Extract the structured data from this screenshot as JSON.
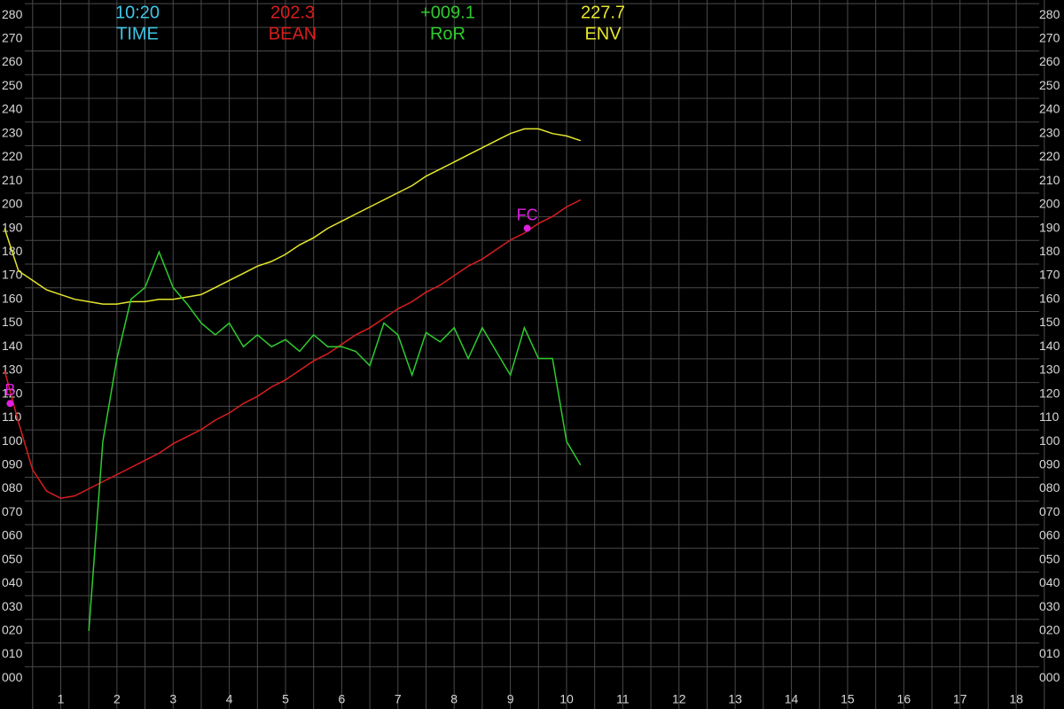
{
  "chart_data": {
    "type": "line",
    "readouts": [
      {
        "value": "10:20",
        "label": "TIME",
        "color": "#3fc6e6"
      },
      {
        "value": "202.3",
        "label": "BEAN",
        "color": "#d81e1e"
      },
      {
        "value": "+009.1",
        "label": "RoR",
        "color": "#2ecc2e"
      },
      {
        "value": "227.7",
        "label": "ENV",
        "color": "#e6e62e"
      }
    ],
    "x": [
      0,
      0.25,
      0.5,
      0.75,
      1,
      1.25,
      1.5,
      1.75,
      2,
      2.25,
      2.5,
      2.75,
      3,
      3.25,
      3.5,
      3.75,
      4,
      4.25,
      4.5,
      4.75,
      5,
      5.25,
      5.5,
      5.75,
      6,
      6.25,
      6.5,
      6.75,
      7,
      7.25,
      7.5,
      7.75,
      8,
      8.25,
      8.5,
      8.75,
      9,
      9.25,
      9.5,
      9.75,
      10,
      10.25
    ],
    "series": [
      {
        "name": "ENV",
        "color": "#e6e62e",
        "values": [
          190,
          172,
          168,
          164,
          162,
          160,
          159,
          158,
          158,
          159,
          159,
          160,
          160,
          161,
          162,
          165,
          168,
          171,
          174,
          176,
          179,
          183,
          186,
          190,
          193,
          196,
          199,
          202,
          205,
          208,
          212,
          215,
          218,
          221,
          224,
          227,
          230,
          232,
          232,
          230,
          229,
          227
        ]
      },
      {
        "name": "BEAN",
        "color": "#d81e1e",
        "values": [
          130,
          108,
          88,
          79,
          76,
          77,
          80,
          83,
          86,
          89,
          92,
          95,
          99,
          102,
          105,
          109,
          112,
          116,
          119,
          123,
          126,
          130,
          134,
          137,
          141,
          145,
          148,
          152,
          156,
          159,
          163,
          166,
          170,
          174,
          177,
          181,
          185,
          188,
          192,
          195,
          199,
          202
        ]
      },
      {
        "name": "RoR",
        "color": "#2ecc2e",
        "values": [
          null,
          null,
          null,
          null,
          null,
          null,
          20,
          100,
          135,
          160,
          165,
          180,
          165,
          158,
          150,
          145,
          150,
          140,
          145,
          140,
          143,
          138,
          145,
          140,
          140,
          138,
          132,
          150,
          145,
          128,
          146,
          142,
          148,
          135,
          148,
          138,
          128,
          148,
          135,
          135,
          100,
          90
        ]
      }
    ],
    "annotations": [
      {
        "text": "B",
        "x": 0.1,
        "y": 116,
        "color": "#e020e0"
      },
      {
        "text": "FC",
        "x": 9.3,
        "y": 190,
        "color": "#e020e0"
      }
    ],
    "xlim": [
      -0.08,
      18.85
    ],
    "ylim": [
      -13,
      286.4
    ],
    "xticks": [
      1,
      2,
      3,
      4,
      5,
      6,
      7,
      8,
      9,
      10,
      11,
      12,
      13,
      14,
      15,
      16,
      17,
      18
    ],
    "xminorticks": [
      0.5,
      1.5,
      2.5,
      3.5,
      4.5,
      5.5,
      6.5,
      7.5,
      8.5,
      9.5,
      10.5,
      11.5,
      12.5,
      13.5,
      14.5,
      15.5,
      16.5,
      17.5,
      18.5
    ],
    "yticks": [
      {
        "value": 0,
        "label": "000"
      },
      {
        "value": 10,
        "label": "010"
      },
      {
        "value": 20,
        "label": "020"
      },
      {
        "value": 30,
        "label": "030"
      },
      {
        "value": 40,
        "label": "040"
      },
      {
        "value": 50,
        "label": "050"
      },
      {
        "value": 60,
        "label": "060"
      },
      {
        "value": 70,
        "label": "070"
      },
      {
        "value": 80,
        "label": "080"
      },
      {
        "value": 90,
        "label": "090"
      },
      100,
      110,
      120,
      130,
      140,
      150,
      160,
      170,
      180,
      190,
      200,
      210,
      220,
      230,
      240,
      250,
      260,
      270,
      280
    ],
    "grid": true
  }
}
